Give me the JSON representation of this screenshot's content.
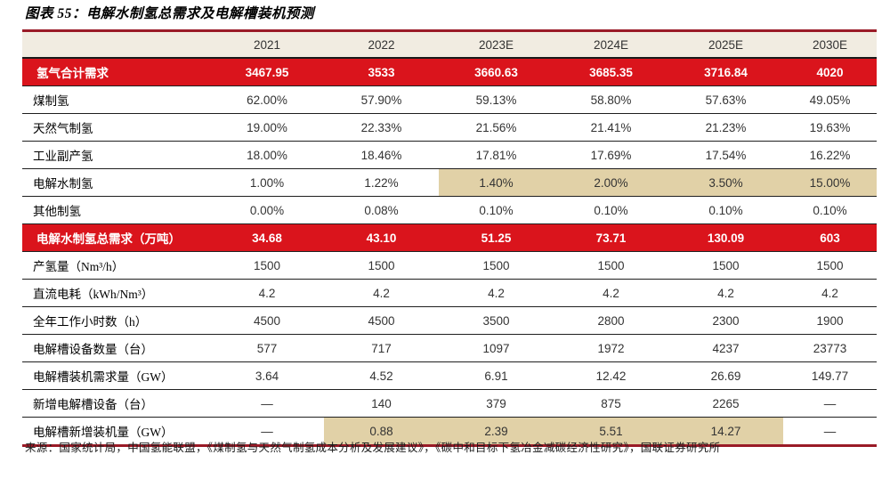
{
  "title": "图表 55：电解水制氢总需求及电解槽装机预测",
  "source": "来源：国家统计局，中国氢能联盟，《煤制氢与天然气制氢成本分析及发展建议》，《碳中和目标下氢冶金减碳经济性研究》，国联证券研究所",
  "colors": {
    "accent_red_row": "#da141c",
    "border_crimson": "#9a1b27",
    "header_beige": "#f1ece1",
    "highlight_tan": "#e1d1a7",
    "row_line": "#1f1f1f"
  },
  "chart_data": {
    "type": "table",
    "columns": [
      "",
      "2021",
      "2022",
      "2023E",
      "2024E",
      "2025E",
      "2030E"
    ],
    "rows": [
      {
        "label": "氢气合计需求",
        "style": "red",
        "highlight": [],
        "values": [
          "3467.95",
          "3533",
          "3660.63",
          "3685.35",
          "3716.84",
          "4020"
        ]
      },
      {
        "label": "煤制氢",
        "style": "normal",
        "highlight": [],
        "values": [
          "62.00%",
          "57.90%",
          "59.13%",
          "58.80%",
          "57.63%",
          "49.05%"
        ]
      },
      {
        "label": "天然气制氢",
        "style": "normal",
        "highlight": [],
        "values": [
          "19.00%",
          "22.33%",
          "21.56%",
          "21.41%",
          "21.23%",
          "19.63%"
        ]
      },
      {
        "label": "工业副产氢",
        "style": "normal",
        "highlight": [],
        "values": [
          "18.00%",
          "18.46%",
          "17.81%",
          "17.69%",
          "17.54%",
          "16.22%"
        ]
      },
      {
        "label": "电解水制氢",
        "style": "normal",
        "highlight": [
          2,
          3,
          4,
          5
        ],
        "values": [
          "1.00%",
          "1.22%",
          "1.40%",
          "2.00%",
          "3.50%",
          "15.00%"
        ]
      },
      {
        "label": "其他制氢",
        "style": "normal",
        "highlight": [],
        "values": [
          "0.00%",
          "0.08%",
          "0.10%",
          "0.10%",
          "0.10%",
          "0.10%"
        ]
      },
      {
        "label": "电解水制氢总需求（万吨）",
        "style": "red",
        "highlight": [],
        "values": [
          "34.68",
          "43.10",
          "51.25",
          "73.71",
          "130.09",
          "603"
        ]
      },
      {
        "label": "产氢量（Nm³/h）",
        "style": "normal",
        "highlight": [],
        "values": [
          "1500",
          "1500",
          "1500",
          "1500",
          "1500",
          "1500"
        ]
      },
      {
        "label": "直流电耗（kWh/Nm³）",
        "style": "normal",
        "highlight": [],
        "values": [
          "4.2",
          "4.2",
          "4.2",
          "4.2",
          "4.2",
          "4.2"
        ]
      },
      {
        "label": "全年工作小时数（h）",
        "style": "normal",
        "highlight": [],
        "values": [
          "4500",
          "4500",
          "3500",
          "2800",
          "2300",
          "1900"
        ]
      },
      {
        "label": "电解槽设备数量（台）",
        "style": "normal",
        "highlight": [],
        "values": [
          "577",
          "717",
          "1097",
          "1972",
          "4237",
          "23773"
        ]
      },
      {
        "label": "电解槽装机需求量（GW）",
        "style": "normal",
        "highlight": [],
        "values": [
          "3.64",
          "4.52",
          "6.91",
          "12.42",
          "26.69",
          "149.77"
        ]
      },
      {
        "label": "新增电解槽设备（台）",
        "style": "normal",
        "highlight": [],
        "values": [
          "—",
          "140",
          "379",
          "875",
          "2265",
          "—"
        ]
      },
      {
        "label": "电解槽新增装机量（GW）",
        "style": "normal",
        "highlight": [
          1,
          2,
          3,
          4
        ],
        "values": [
          "—",
          "0.88",
          "2.39",
          "5.51",
          "14.27",
          "—"
        ]
      }
    ]
  }
}
